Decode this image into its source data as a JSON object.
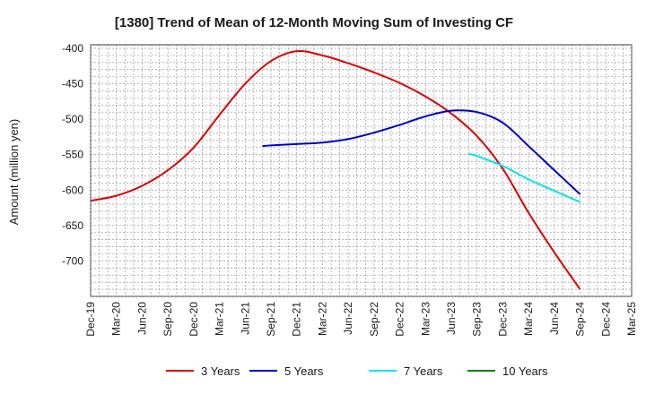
{
  "chart_data": {
    "type": "line",
    "title": "[1380]  Trend of Mean of 12-Month Moving Sum of Investing CF",
    "xlabel": "",
    "ylabel": "Amount (million yen)",
    "ylim": [
      -750,
      -395
    ],
    "yticks": [
      -400,
      -450,
      -500,
      -550,
      -600,
      -650,
      -700
    ],
    "x_tick_labels": [
      "Dec-19",
      "Mar-20",
      "Jun-20",
      "Sep-20",
      "Dec-20",
      "Mar-21",
      "Jun-21",
      "Sep-21",
      "Dec-21",
      "Mar-22",
      "Jun-22",
      "Sep-22",
      "Dec-22",
      "Mar-23",
      "Jun-23",
      "Sep-23",
      "Dec-23",
      "Mar-24",
      "Jun-24",
      "Sep-24",
      "Dec-24",
      "Mar-25"
    ],
    "grid": true,
    "legend_position": "bottom",
    "series": [
      {
        "name": "3 Years",
        "color": "#e00000",
        "points": [
          [
            0,
            -615
          ],
          [
            1,
            -608
          ],
          [
            2,
            -594
          ],
          [
            3,
            -572
          ],
          [
            4,
            -540
          ],
          [
            5,
            -494
          ],
          [
            6,
            -450
          ],
          [
            7,
            -418
          ],
          [
            8,
            -404
          ],
          [
            9,
            -410
          ],
          [
            10,
            -421
          ],
          [
            11,
            -434
          ],
          [
            12,
            -449
          ],
          [
            13,
            -468
          ],
          [
            14,
            -492
          ],
          [
            15,
            -524
          ],
          [
            16,
            -570
          ],
          [
            17,
            -632
          ],
          [
            18,
            -688
          ],
          [
            19,
            -740
          ]
        ]
      },
      {
        "name": "5 Years",
        "color": "#0000cc",
        "points": [
          [
            6.67,
            -538
          ],
          [
            7,
            -537
          ],
          [
            8,
            -535
          ],
          [
            9,
            -533
          ],
          [
            10,
            -528
          ],
          [
            11,
            -519
          ],
          [
            12,
            -508
          ],
          [
            13,
            -496
          ],
          [
            14,
            -488
          ],
          [
            15,
            -490
          ],
          [
            16,
            -505
          ],
          [
            17,
            -538
          ],
          [
            18,
            -572
          ],
          [
            19,
            -606
          ]
        ]
      },
      {
        "name": "7 Years",
        "color": "#00e5ee",
        "points": [
          [
            14.67,
            -549
          ],
          [
            15,
            -552
          ],
          [
            16,
            -566
          ],
          [
            17,
            -585
          ],
          [
            18,
            -601
          ],
          [
            19,
            -617
          ]
        ]
      },
      {
        "name": "10 Years",
        "color": "#008000",
        "points": []
      }
    ]
  }
}
